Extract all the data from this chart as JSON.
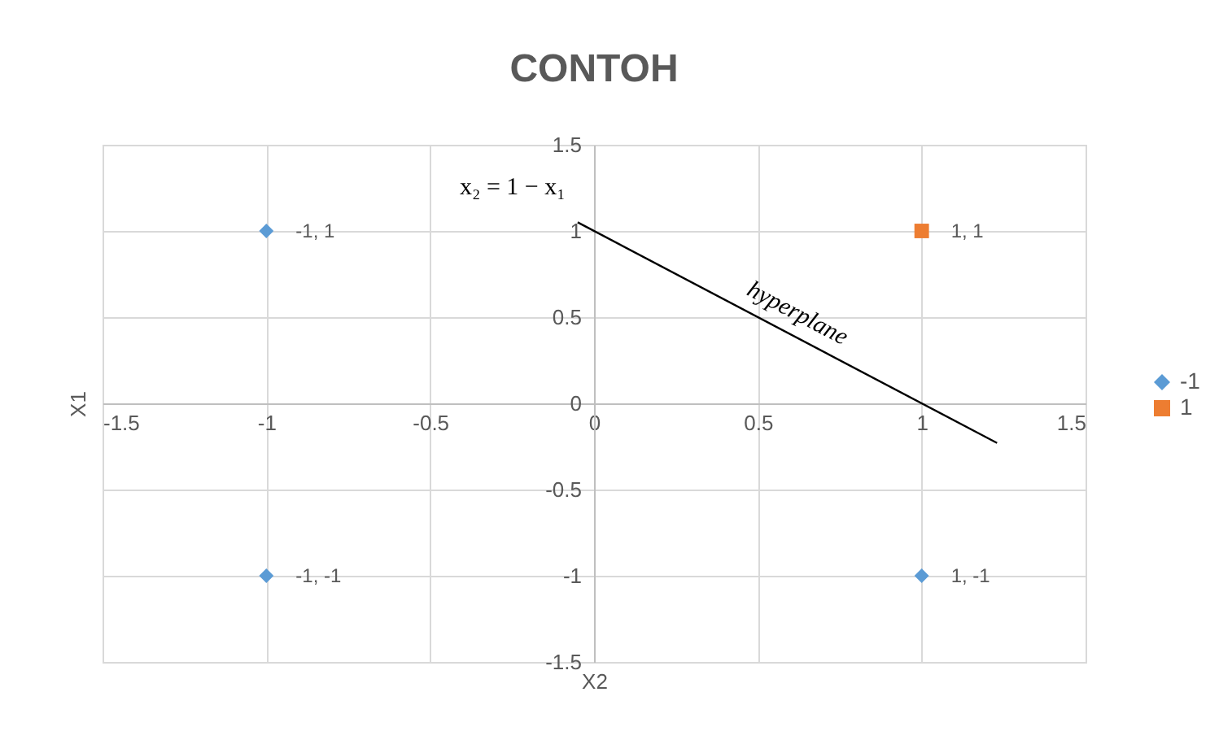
{
  "chart_data": {
    "type": "scatter",
    "title": "CONTOH",
    "xlabel": "X2",
    "ylabel": "X1",
    "xlim": [
      -1.5,
      1.5
    ],
    "ylim": [
      -1.5,
      1.5
    ],
    "xticks": [
      -1.5,
      -1,
      -0.5,
      0,
      0.5,
      1,
      1.5
    ],
    "yticks": [
      -1.5,
      -1,
      -0.5,
      0,
      0.5,
      1,
      1.5
    ],
    "grid": true,
    "legend": "right",
    "series": [
      {
        "name": "-1",
        "marker": "diamond",
        "color": "#5b9bd5",
        "x": [
          -1,
          -1,
          1
        ],
        "values": [
          1,
          -1,
          -1
        ],
        "value_labels": [
          "-1, 1",
          "-1, -1",
          "1, -1"
        ]
      },
      {
        "name": "1",
        "marker": "square",
        "color": "#ed7d31",
        "x": [
          1
        ],
        "values": [
          1
        ],
        "value_labels": [
          "1, 1"
        ]
      },
      {
        "type": "line",
        "color": "#000000",
        "line_style": "solid",
        "x": [
          -0.05,
          1.23
        ],
        "values": [
          1.05,
          -0.23
        ]
      }
    ],
    "annotations": [
      "x₂ = 1 − x₁",
      "hyperplane"
    ]
  }
}
